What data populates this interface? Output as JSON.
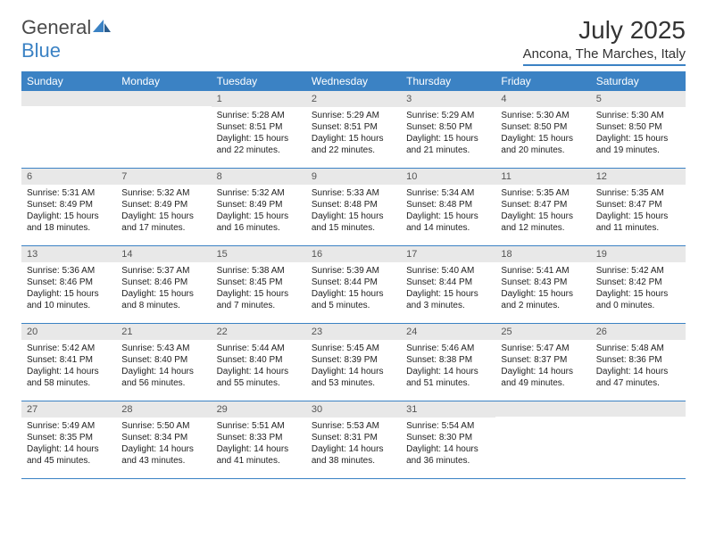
{
  "logo": {
    "word1": "General",
    "word2": "Blue"
  },
  "title": "July 2025",
  "location": "Ancona, The Marches, Italy",
  "colors": {
    "accent": "#3b82c4",
    "dayHeader": "#e8e8e8",
    "text": "#222222"
  },
  "weekdays": [
    "Sunday",
    "Monday",
    "Tuesday",
    "Wednesday",
    "Thursday",
    "Friday",
    "Saturday"
  ],
  "weeks": [
    [
      null,
      null,
      {
        "n": "1",
        "sr": "Sunrise: 5:28 AM",
        "ss": "Sunset: 8:51 PM",
        "d1": "Daylight: 15 hours",
        "d2": "and 22 minutes."
      },
      {
        "n": "2",
        "sr": "Sunrise: 5:29 AM",
        "ss": "Sunset: 8:51 PM",
        "d1": "Daylight: 15 hours",
        "d2": "and 22 minutes."
      },
      {
        "n": "3",
        "sr": "Sunrise: 5:29 AM",
        "ss": "Sunset: 8:50 PM",
        "d1": "Daylight: 15 hours",
        "d2": "and 21 minutes."
      },
      {
        "n": "4",
        "sr": "Sunrise: 5:30 AM",
        "ss": "Sunset: 8:50 PM",
        "d1": "Daylight: 15 hours",
        "d2": "and 20 minutes."
      },
      {
        "n": "5",
        "sr": "Sunrise: 5:30 AM",
        "ss": "Sunset: 8:50 PM",
        "d1": "Daylight: 15 hours",
        "d2": "and 19 minutes."
      }
    ],
    [
      {
        "n": "6",
        "sr": "Sunrise: 5:31 AM",
        "ss": "Sunset: 8:49 PM",
        "d1": "Daylight: 15 hours",
        "d2": "and 18 minutes."
      },
      {
        "n": "7",
        "sr": "Sunrise: 5:32 AM",
        "ss": "Sunset: 8:49 PM",
        "d1": "Daylight: 15 hours",
        "d2": "and 17 minutes."
      },
      {
        "n": "8",
        "sr": "Sunrise: 5:32 AM",
        "ss": "Sunset: 8:49 PM",
        "d1": "Daylight: 15 hours",
        "d2": "and 16 minutes."
      },
      {
        "n": "9",
        "sr": "Sunrise: 5:33 AM",
        "ss": "Sunset: 8:48 PM",
        "d1": "Daylight: 15 hours",
        "d2": "and 15 minutes."
      },
      {
        "n": "10",
        "sr": "Sunrise: 5:34 AM",
        "ss": "Sunset: 8:48 PM",
        "d1": "Daylight: 15 hours",
        "d2": "and 14 minutes."
      },
      {
        "n": "11",
        "sr": "Sunrise: 5:35 AM",
        "ss": "Sunset: 8:47 PM",
        "d1": "Daylight: 15 hours",
        "d2": "and 12 minutes."
      },
      {
        "n": "12",
        "sr": "Sunrise: 5:35 AM",
        "ss": "Sunset: 8:47 PM",
        "d1": "Daylight: 15 hours",
        "d2": "and 11 minutes."
      }
    ],
    [
      {
        "n": "13",
        "sr": "Sunrise: 5:36 AM",
        "ss": "Sunset: 8:46 PM",
        "d1": "Daylight: 15 hours",
        "d2": "and 10 minutes."
      },
      {
        "n": "14",
        "sr": "Sunrise: 5:37 AM",
        "ss": "Sunset: 8:46 PM",
        "d1": "Daylight: 15 hours",
        "d2": "and 8 minutes."
      },
      {
        "n": "15",
        "sr": "Sunrise: 5:38 AM",
        "ss": "Sunset: 8:45 PM",
        "d1": "Daylight: 15 hours",
        "d2": "and 7 minutes."
      },
      {
        "n": "16",
        "sr": "Sunrise: 5:39 AM",
        "ss": "Sunset: 8:44 PM",
        "d1": "Daylight: 15 hours",
        "d2": "and 5 minutes."
      },
      {
        "n": "17",
        "sr": "Sunrise: 5:40 AM",
        "ss": "Sunset: 8:44 PM",
        "d1": "Daylight: 15 hours",
        "d2": "and 3 minutes."
      },
      {
        "n": "18",
        "sr": "Sunrise: 5:41 AM",
        "ss": "Sunset: 8:43 PM",
        "d1": "Daylight: 15 hours",
        "d2": "and 2 minutes."
      },
      {
        "n": "19",
        "sr": "Sunrise: 5:42 AM",
        "ss": "Sunset: 8:42 PM",
        "d1": "Daylight: 15 hours",
        "d2": "and 0 minutes."
      }
    ],
    [
      {
        "n": "20",
        "sr": "Sunrise: 5:42 AM",
        "ss": "Sunset: 8:41 PM",
        "d1": "Daylight: 14 hours",
        "d2": "and 58 minutes."
      },
      {
        "n": "21",
        "sr": "Sunrise: 5:43 AM",
        "ss": "Sunset: 8:40 PM",
        "d1": "Daylight: 14 hours",
        "d2": "and 56 minutes."
      },
      {
        "n": "22",
        "sr": "Sunrise: 5:44 AM",
        "ss": "Sunset: 8:40 PM",
        "d1": "Daylight: 14 hours",
        "d2": "and 55 minutes."
      },
      {
        "n": "23",
        "sr": "Sunrise: 5:45 AM",
        "ss": "Sunset: 8:39 PM",
        "d1": "Daylight: 14 hours",
        "d2": "and 53 minutes."
      },
      {
        "n": "24",
        "sr": "Sunrise: 5:46 AM",
        "ss": "Sunset: 8:38 PM",
        "d1": "Daylight: 14 hours",
        "d2": "and 51 minutes."
      },
      {
        "n": "25",
        "sr": "Sunrise: 5:47 AM",
        "ss": "Sunset: 8:37 PM",
        "d1": "Daylight: 14 hours",
        "d2": "and 49 minutes."
      },
      {
        "n": "26",
        "sr": "Sunrise: 5:48 AM",
        "ss": "Sunset: 8:36 PM",
        "d1": "Daylight: 14 hours",
        "d2": "and 47 minutes."
      }
    ],
    [
      {
        "n": "27",
        "sr": "Sunrise: 5:49 AM",
        "ss": "Sunset: 8:35 PM",
        "d1": "Daylight: 14 hours",
        "d2": "and 45 minutes."
      },
      {
        "n": "28",
        "sr": "Sunrise: 5:50 AM",
        "ss": "Sunset: 8:34 PM",
        "d1": "Daylight: 14 hours",
        "d2": "and 43 minutes."
      },
      {
        "n": "29",
        "sr": "Sunrise: 5:51 AM",
        "ss": "Sunset: 8:33 PM",
        "d1": "Daylight: 14 hours",
        "d2": "and 41 minutes."
      },
      {
        "n": "30",
        "sr": "Sunrise: 5:53 AM",
        "ss": "Sunset: 8:31 PM",
        "d1": "Daylight: 14 hours",
        "d2": "and 38 minutes."
      },
      {
        "n": "31",
        "sr": "Sunrise: 5:54 AM",
        "ss": "Sunset: 8:30 PM",
        "d1": "Daylight: 14 hours",
        "d2": "and 36 minutes."
      },
      null,
      null
    ]
  ]
}
